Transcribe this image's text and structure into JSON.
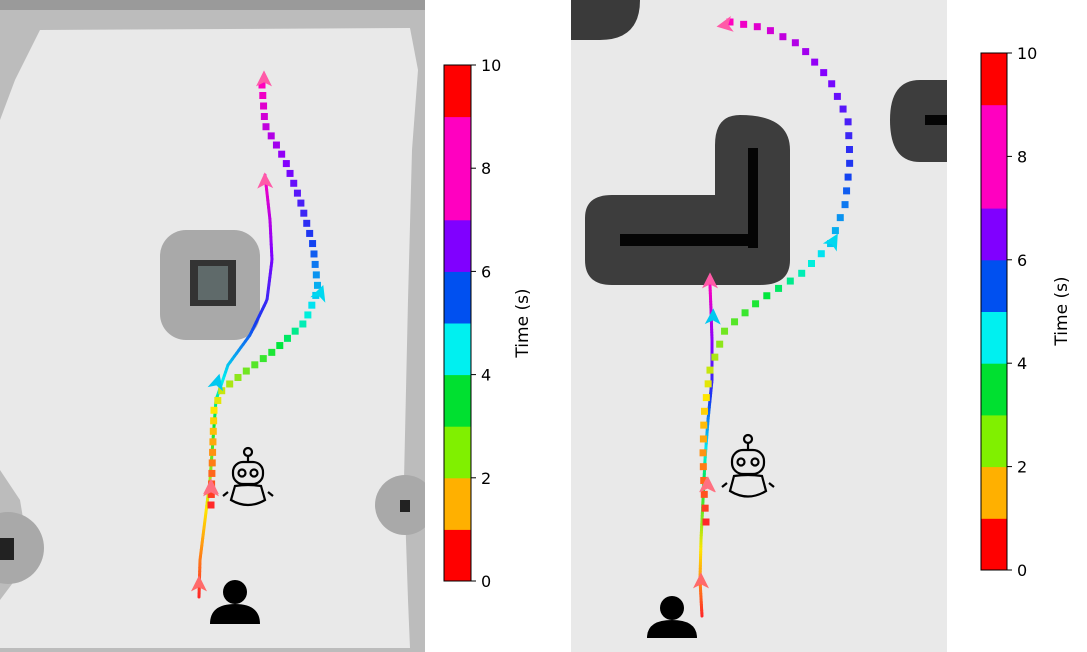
{
  "chart_data": {
    "type": "scatter",
    "description_kind": "occupancy-map trajectory plots with time colorbars",
    "colorbar": {
      "label": "Time (s)",
      "range": [
        0,
        10
      ],
      "ticks": [
        "0",
        "2",
        "4",
        "6",
        "8",
        "10"
      ],
      "bins": [
        {
          "from": 0,
          "to": 1,
          "color": "#ff0000"
        },
        {
          "from": 1,
          "to": 2,
          "color": "#ffb000"
        },
        {
          "from": 2,
          "to": 3,
          "color": "#80f000"
        },
        {
          "from": 3,
          "to": 4,
          "color": "#00e030"
        },
        {
          "from": 4,
          "to": 5,
          "color": "#00f0f0"
        },
        {
          "from": 5,
          "to": 6,
          "color": "#0050f0"
        },
        {
          "from": 6,
          "to": 7,
          "color": "#8000ff"
        },
        {
          "from": 7,
          "to": 8,
          "color": "#ff00c0"
        },
        {
          "from": 8,
          "to": 9,
          "color": "#ff00c0"
        },
        {
          "from": 9,
          "to": 10,
          "color": "#ff0000"
        }
      ]
    },
    "panels": [
      {
        "name": "left",
        "human_path": [
          [
            199,
            597
          ],
          [
            200,
            560
          ],
          [
            205,
            520
          ],
          [
            210,
            480
          ],
          [
            213,
            440
          ],
          [
            216,
            400
          ],
          [
            228,
            365
          ],
          [
            250,
            335
          ],
          [
            267,
            300
          ],
          [
            272,
            260
          ],
          [
            270,
            220
          ],
          [
            265,
            175
          ]
        ],
        "human_times": [
          0,
          1,
          2,
          3,
          4,
          5,
          6,
          7,
          8,
          9,
          10
        ],
        "human_arrows": [
          [
            199,
            585,
            -90
          ],
          [
            211,
            488,
            -90
          ],
          [
            217,
            383,
            -75
          ],
          [
            265,
            182,
            -92
          ]
        ],
        "robot_path": [
          [
            211,
            505
          ],
          [
            212,
            470
          ],
          [
            213,
            440
          ],
          [
            214,
            410
          ],
          [
            222,
            390
          ],
          [
            245,
            372
          ],
          [
            275,
            350
          ],
          [
            305,
            322
          ],
          [
            318,
            290
          ],
          [
            313,
            245
          ],
          [
            300,
            200
          ],
          [
            285,
            160
          ],
          [
            265,
            125
          ],
          [
            262,
            85
          ]
        ],
        "robot_times": [
          0,
          1,
          2,
          3,
          4,
          5,
          6,
          7,
          8,
          9,
          10
        ],
        "robot_arrows": [
          [
            211,
            490,
            -90
          ],
          [
            320,
            294,
            -70
          ],
          [
            264,
            80,
            -90
          ]
        ],
        "obstacles": "square-block"
      },
      {
        "name": "right",
        "human_path": [
          [
            702,
            616
          ],
          [
            700,
            580
          ],
          [
            701,
            540
          ],
          [
            703,
            500
          ],
          [
            705,
            460
          ],
          [
            708,
            420
          ],
          [
            712,
            380
          ],
          [
            712,
            340
          ],
          [
            711,
            310
          ],
          [
            710,
            285
          ]
        ],
        "human_times": [
          0,
          1,
          2,
          3,
          4,
          5,
          6,
          7,
          8,
          9,
          10
        ],
        "human_arrows": [
          [
            701,
            582,
            -90
          ],
          [
            708,
            486,
            -90
          ],
          [
            713,
            318,
            -88
          ],
          [
            710,
            282,
            -90
          ]
        ],
        "robot_path": [
          [
            706,
            522
          ],
          [
            704,
            490
          ],
          [
            703,
            455
          ],
          [
            704,
            415
          ],
          [
            710,
            370
          ],
          [
            725,
            330
          ],
          [
            760,
            300
          ],
          [
            800,
            275
          ],
          [
            830,
            245
          ],
          [
            845,
            205
          ],
          [
            850,
            160
          ],
          [
            848,
            120
          ],
          [
            830,
            80
          ],
          [
            800,
            45
          ],
          [
            765,
            28
          ],
          [
            730,
            22
          ]
        ],
        "robot_times": [
          0,
          1,
          2,
          3,
          4,
          5,
          6,
          7,
          8,
          9,
          10
        ],
        "robot_arrows": [
          [
            707,
            486,
            -90
          ],
          [
            833,
            242,
            -60
          ],
          [
            726,
            25,
            170
          ]
        ],
        "obstacles": "L-shaped-wall"
      }
    ]
  }
}
